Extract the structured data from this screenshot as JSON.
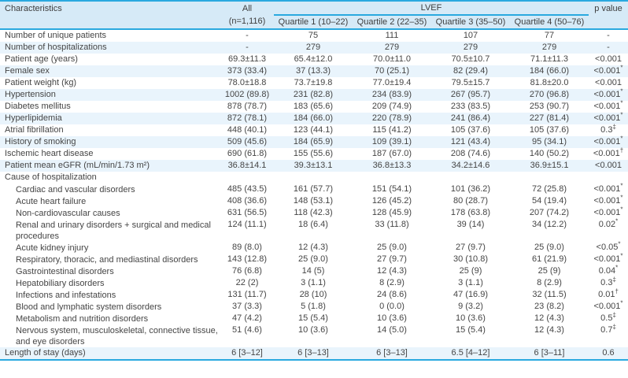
{
  "colors": {
    "accent_blue_line": "#2aa9df",
    "header_background": "#d6eaf7",
    "shaded_row_background": "#e9f4fc",
    "text": "#414141"
  },
  "table": {
    "header": {
      "characteristics": "Characteristics",
      "all_line1": "All",
      "all_line2": "(n=1,116)",
      "lvef": "LVEF",
      "quartiles": [
        "Quartile 1 (10–22)",
        "Quartile 2 (22–35)",
        "Quartile 3 (35–50)",
        "Quartile 4 (50–76)"
      ],
      "p_value": "p value"
    },
    "rows": [
      {
        "label": "Number of unique patients",
        "indent": 0,
        "section": false,
        "shaded": false,
        "values": [
          "-",
          "75",
          "111",
          "107",
          "77",
          "-"
        ]
      },
      {
        "label": "Number of hospitalizations",
        "indent": 0,
        "section": false,
        "shaded": true,
        "values": [
          "-",
          "279",
          "279",
          "279",
          "279",
          "-"
        ]
      },
      {
        "label": "Patient age (years)",
        "indent": 0,
        "section": false,
        "shaded": false,
        "values": [
          "69.3±11.3",
          "65.4±12.0",
          "70.0±11.0",
          "70.5±10.7",
          "71.1±11.3",
          "<0.001"
        ]
      },
      {
        "label": "Female sex",
        "indent": 0,
        "section": false,
        "shaded": true,
        "values": [
          "373 (33.4)",
          "37 (13.3)",
          "70 (25.1)",
          "82 (29.4)",
          "184 (66.0)",
          "<0.001*"
        ]
      },
      {
        "label": "Patient weight (kg)",
        "indent": 0,
        "section": false,
        "shaded": false,
        "values": [
          "78.0±18.8",
          "73.7±19.8",
          "77.0±19.4",
          "79.5±15.7",
          "81.8±20.0",
          "<0.001"
        ]
      },
      {
        "label": "Hypertension",
        "indent": 0,
        "section": false,
        "shaded": true,
        "values": [
          "1002 (89.8)",
          "231 (82.8)",
          "234 (83.9)",
          "267 (95.7)",
          "270 (96.8)",
          "<0.001*"
        ]
      },
      {
        "label": "Diabetes mellitus",
        "indent": 0,
        "section": false,
        "shaded": false,
        "values": [
          "878 (78.7)",
          "183 (65.6)",
          "209 (74.9)",
          "233 (83.5)",
          "253 (90.7)",
          "<0.001*"
        ]
      },
      {
        "label": "Hyperlipidemia",
        "indent": 0,
        "section": false,
        "shaded": true,
        "values": [
          "872 (78.1)",
          "184 (66.0)",
          "220 (78.9)",
          "241 (86.4)",
          "227 (81.4)",
          "<0.001*"
        ]
      },
      {
        "label": "Atrial fibrillation",
        "indent": 0,
        "section": false,
        "shaded": false,
        "values": [
          "448 (40.1)",
          "123 (44.1)",
          "115 (41.2)",
          "105 (37.6)",
          "105 (37.6)",
          "0.3‡"
        ]
      },
      {
        "label": "History of smoking",
        "indent": 0,
        "section": false,
        "shaded": true,
        "values": [
          "509 (45.6)",
          "184 (65.9)",
          "109 (39.1)",
          "121 (43.4)",
          "95 (34.1)",
          "<0.001*"
        ]
      },
      {
        "label": "Ischemic heart disease",
        "indent": 0,
        "section": false,
        "shaded": false,
        "values": [
          "690 (61.8)",
          "155 (55.6)",
          "187 (67.0)",
          "208 (74.6)",
          "140 (50.2)",
          "<0.001†"
        ]
      },
      {
        "label": "Patient mean eGFR (mL/min/1.73 m²)",
        "indent": 0,
        "section": false,
        "shaded": true,
        "values": [
          "36.8±14.1",
          "39.3±13.1",
          "36.8±13.3",
          "34.2±14.6",
          "36.9±15.1",
          "<0.001"
        ]
      },
      {
        "label": "Cause of hospitalization",
        "indent": 0,
        "section": true,
        "shaded": false,
        "values": [
          "",
          "",
          "",
          "",
          "",
          ""
        ]
      },
      {
        "label": "Cardiac and vascular disorders",
        "indent": 1,
        "section": false,
        "shaded": false,
        "values": [
          "485 (43.5)",
          "161 (57.7)",
          "151 (54.1)",
          "101 (36.2)",
          "72 (25.8)",
          "<0.001*"
        ]
      },
      {
        "label": "Acute heart failure",
        "indent": 1,
        "section": false,
        "shaded": false,
        "values": [
          "408 (36.6)",
          "148 (53.1)",
          "126 (45.2)",
          "80 (28.7)",
          "54 (19.4)",
          "<0.001*"
        ]
      },
      {
        "label": "Non-cardiovascular causes",
        "indent": 1,
        "section": false,
        "shaded": false,
        "values": [
          "631 (56.5)",
          "118 (42.3)",
          "128 (45.9)",
          "178 (63.8)",
          "207 (74.2)",
          "<0.001*"
        ]
      },
      {
        "label": "Renal and urinary disorders + surgical and medical procedures",
        "indent": 1,
        "section": false,
        "shaded": false,
        "values": [
          "124 (11.1)",
          "18 (6.4)",
          "33 (11.8)",
          "39 (14)",
          "34 (12.2)",
          "0.02*"
        ]
      },
      {
        "label": "Acute kidney injury",
        "indent": 1,
        "section": false,
        "shaded": false,
        "values": [
          "89 (8.0)",
          "12 (4.3)",
          "25 (9.0)",
          "27 (9.7)",
          "25 (9.0)",
          "<0.05*"
        ]
      },
      {
        "label": "Respiratory, thoracic, and mediastinal disorders",
        "indent": 1,
        "section": false,
        "shaded": false,
        "values": [
          "143 (12.8)",
          "25 (9.0)",
          "27 (9.7)",
          "30 (10.8)",
          "61 (21.9)",
          "<0.001*"
        ]
      },
      {
        "label": "Gastrointestinal disorders",
        "indent": 1,
        "section": false,
        "shaded": false,
        "values": [
          "76 (6.8)",
          "14 (5)",
          "12 (4.3)",
          "25 (9)",
          "25 (9)",
          "0.04*"
        ]
      },
      {
        "label": "Hepatobiliary disorders",
        "indent": 1,
        "section": false,
        "shaded": false,
        "values": [
          "22 (2)",
          "3 (1.1)",
          "8 (2.9)",
          "3 (1.1)",
          "8 (2.9)",
          "0.3‡"
        ]
      },
      {
        "label": "Infections and infestations",
        "indent": 1,
        "section": false,
        "shaded": false,
        "values": [
          "131 (11.7)",
          "28 (10)",
          "24 (8.6)",
          "47 (16.9)",
          "32 (11.5)",
          "0.01†"
        ]
      },
      {
        "label": "Blood and lymphatic system disorders",
        "indent": 1,
        "section": false,
        "shaded": false,
        "values": [
          "37 (3.3)",
          "5 (1.8)",
          "0 (0.0)",
          "9 (3.2)",
          "23 (8.2)",
          "<0.001*"
        ]
      },
      {
        "label": "Metabolism and nutrition disorders",
        "indent": 1,
        "section": false,
        "shaded": false,
        "values": [
          "47 (4.2)",
          "15 (5.4)",
          "10 (3.6)",
          "10 (3.6)",
          "12 (4.3)",
          "0.5‡"
        ]
      },
      {
        "label": "Nervous system, musculoskeletal, connective tissue, and eye disorders",
        "indent": 1,
        "section": false,
        "shaded": false,
        "values": [
          "51 (4.6)",
          "10 (3.6)",
          "14 (5.0)",
          "15 (5.4)",
          "12 (4.3)",
          "0.7‡"
        ]
      },
      {
        "label": "Length of stay (days)",
        "indent": 0,
        "section": false,
        "shaded": true,
        "values": [
          "6 [3–12]",
          "6 [3–13]",
          "6 [3–13]",
          "6.5 [4–12]",
          "6 [3–11]",
          "0.6"
        ]
      }
    ]
  }
}
